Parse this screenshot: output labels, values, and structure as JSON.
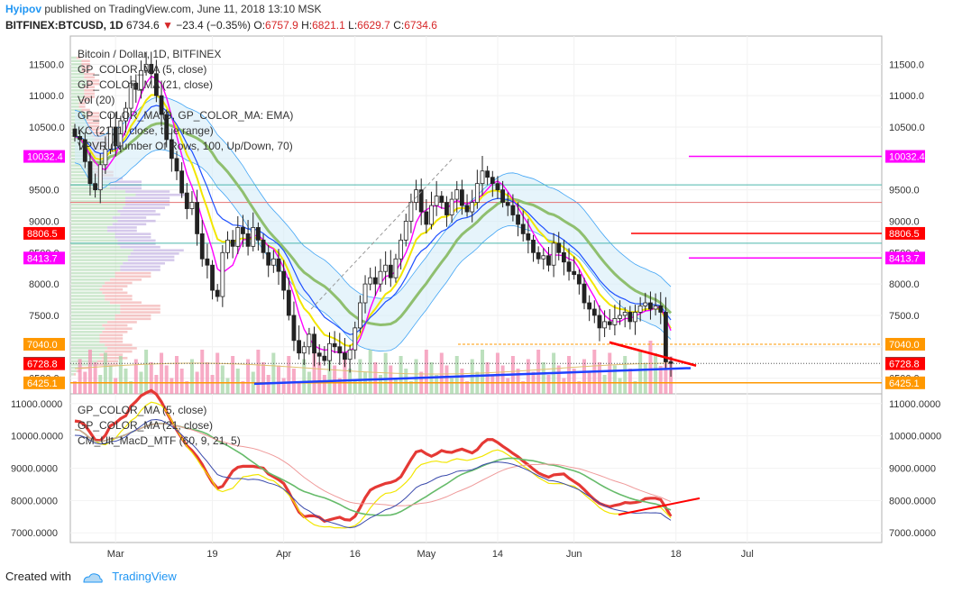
{
  "header": {
    "user": "Hyipov",
    "published": "published on TradingView.com, June 11, 2018 13:10 MSK",
    "symbol": "BITFINEX:BTCUSD, 1D",
    "last": "6734.6",
    "change": "−23.4 (−0.35%)",
    "o_label": "O:",
    "o_val": "6757.9",
    "h_label": "H:",
    "h_val": "6821.1",
    "l_label": "L:",
    "l_val": "6629.7",
    "c_label": "C:",
    "c_val": "6734.6"
  },
  "legend_main": [
    "Bitcoin / Dollar, 1D, BITFINEX",
    "GP_COLOR_MA (5, close)",
    "GP_COLOR_MA (21, close)",
    "Vol (20)",
    "GP_COLOR_MA (9, GP_COLOR_MA: EMA)",
    "KC (21, 1, close, true range)",
    "VPVR (Number Of Rows, 100, Up/Down, 70)"
  ],
  "legend_sub": [
    "GP_COLOR_MA (5, close)",
    "GP_COLOR_MA (21, close)",
    "CM_Ult_MacD_MTF (60, 9, 21, 5)"
  ],
  "footer": {
    "created": "Created with",
    "brand": "TradingView"
  },
  "colors": {
    "up": "#26a69a",
    "down": "#c62828",
    "candle": "#222222",
    "ma5": "#ff00ff",
    "ma21_fast": "#f2e600",
    "ema": "#8fbf6f",
    "kc_fill": "#d6ecf8",
    "kc_line": "#42a5f5",
    "magenta": "#ff00ff",
    "red": "#ff0000",
    "orange": "#ff9800",
    "blue": "#1e40ff"
  },
  "chart_data": [
    {
      "type": "candlestick",
      "title": "Bitcoin / Dollar, 1D, BITFINEX",
      "x_ticks": [
        "Mar",
        "19",
        "Apr",
        "16",
        "May",
        "14",
        "Jun",
        "18",
        "Jul"
      ],
      "y_ticks": [
        "11500.0",
        "11000.0",
        "10500.0",
        "10000.0",
        "9500.0",
        "9000.0",
        "8500.0",
        "8000.0",
        "7500.0",
        "7000.0",
        "6500.0"
      ],
      "ylim": [
        6250,
        11950
      ],
      "price_labels": [
        {
          "value": 10032.4,
          "text": "10032.4",
          "color": "#ff00ff"
        },
        {
          "value": 8806.5,
          "text": "8806.5",
          "color": "#ff0000"
        },
        {
          "value": 8413.7,
          "text": "8413.7",
          "color": "#ff00ff"
        },
        {
          "value": 7040.0,
          "text": "7040.0",
          "color": "#ff9800"
        },
        {
          "value": 6734.6,
          "text": "6734.6",
          "color": "#000000"
        },
        {
          "value": 6728.8,
          "text": "6728.8",
          "color": "#ff0000"
        },
        {
          "value": 6425.1,
          "text": "6425.1",
          "color": "#ff9800"
        }
      ],
      "close": [
        10350,
        10300,
        9950,
        9600,
        9500,
        9900,
        10150,
        10500,
        10200,
        10600,
        10800,
        11200,
        11100,
        11400,
        11500,
        11350,
        11000,
        10700,
        10300,
        10000,
        9800,
        9450,
        9200,
        9300,
        8800,
        8400,
        8300,
        7900,
        7800,
        8500,
        8700,
        8600,
        8900,
        8800,
        8600,
        8900,
        8700,
        8500,
        8300,
        8400,
        8200,
        7900,
        7500,
        7100,
        6900,
        7000,
        7200,
        6900,
        6850,
        6780,
        7050,
        7000,
        6900,
        6800,
        6950,
        7300,
        7700,
        8000,
        8100,
        8000,
        8200,
        8300,
        8100,
        8400,
        8700,
        9000,
        9300,
        9500,
        9150,
        8950,
        9250,
        9400,
        9300,
        9100,
        9350,
        9500,
        9250,
        9150,
        9300,
        9600,
        9800,
        9700,
        9600,
        9500,
        9300,
        9250,
        9100,
        8950,
        8800,
        8700,
        8500,
        8400,
        8450,
        8300,
        8650,
        8500,
        8350,
        8200,
        8150,
        8000,
        7700,
        7600,
        7500,
        7300,
        7400,
        7350,
        7450,
        7500,
        7550,
        7400,
        7550,
        7650,
        7700,
        7600,
        7650,
        7550,
        6760,
        6735
      ],
      "volume_note": "volume histogram (Vol 20) at the bottom of the price pane",
      "annotations": [
        "support line (blue)",
        "resistance levels",
        "bearish divergence line (red)"
      ]
    },
    {
      "type": "line",
      "title": "",
      "y_ticks": [
        "11000.0000",
        "10000.0000",
        "9000.0000",
        "8000.0000",
        "7000.0000"
      ],
      "ylim": [
        6700,
        11300
      ]
    }
  ]
}
